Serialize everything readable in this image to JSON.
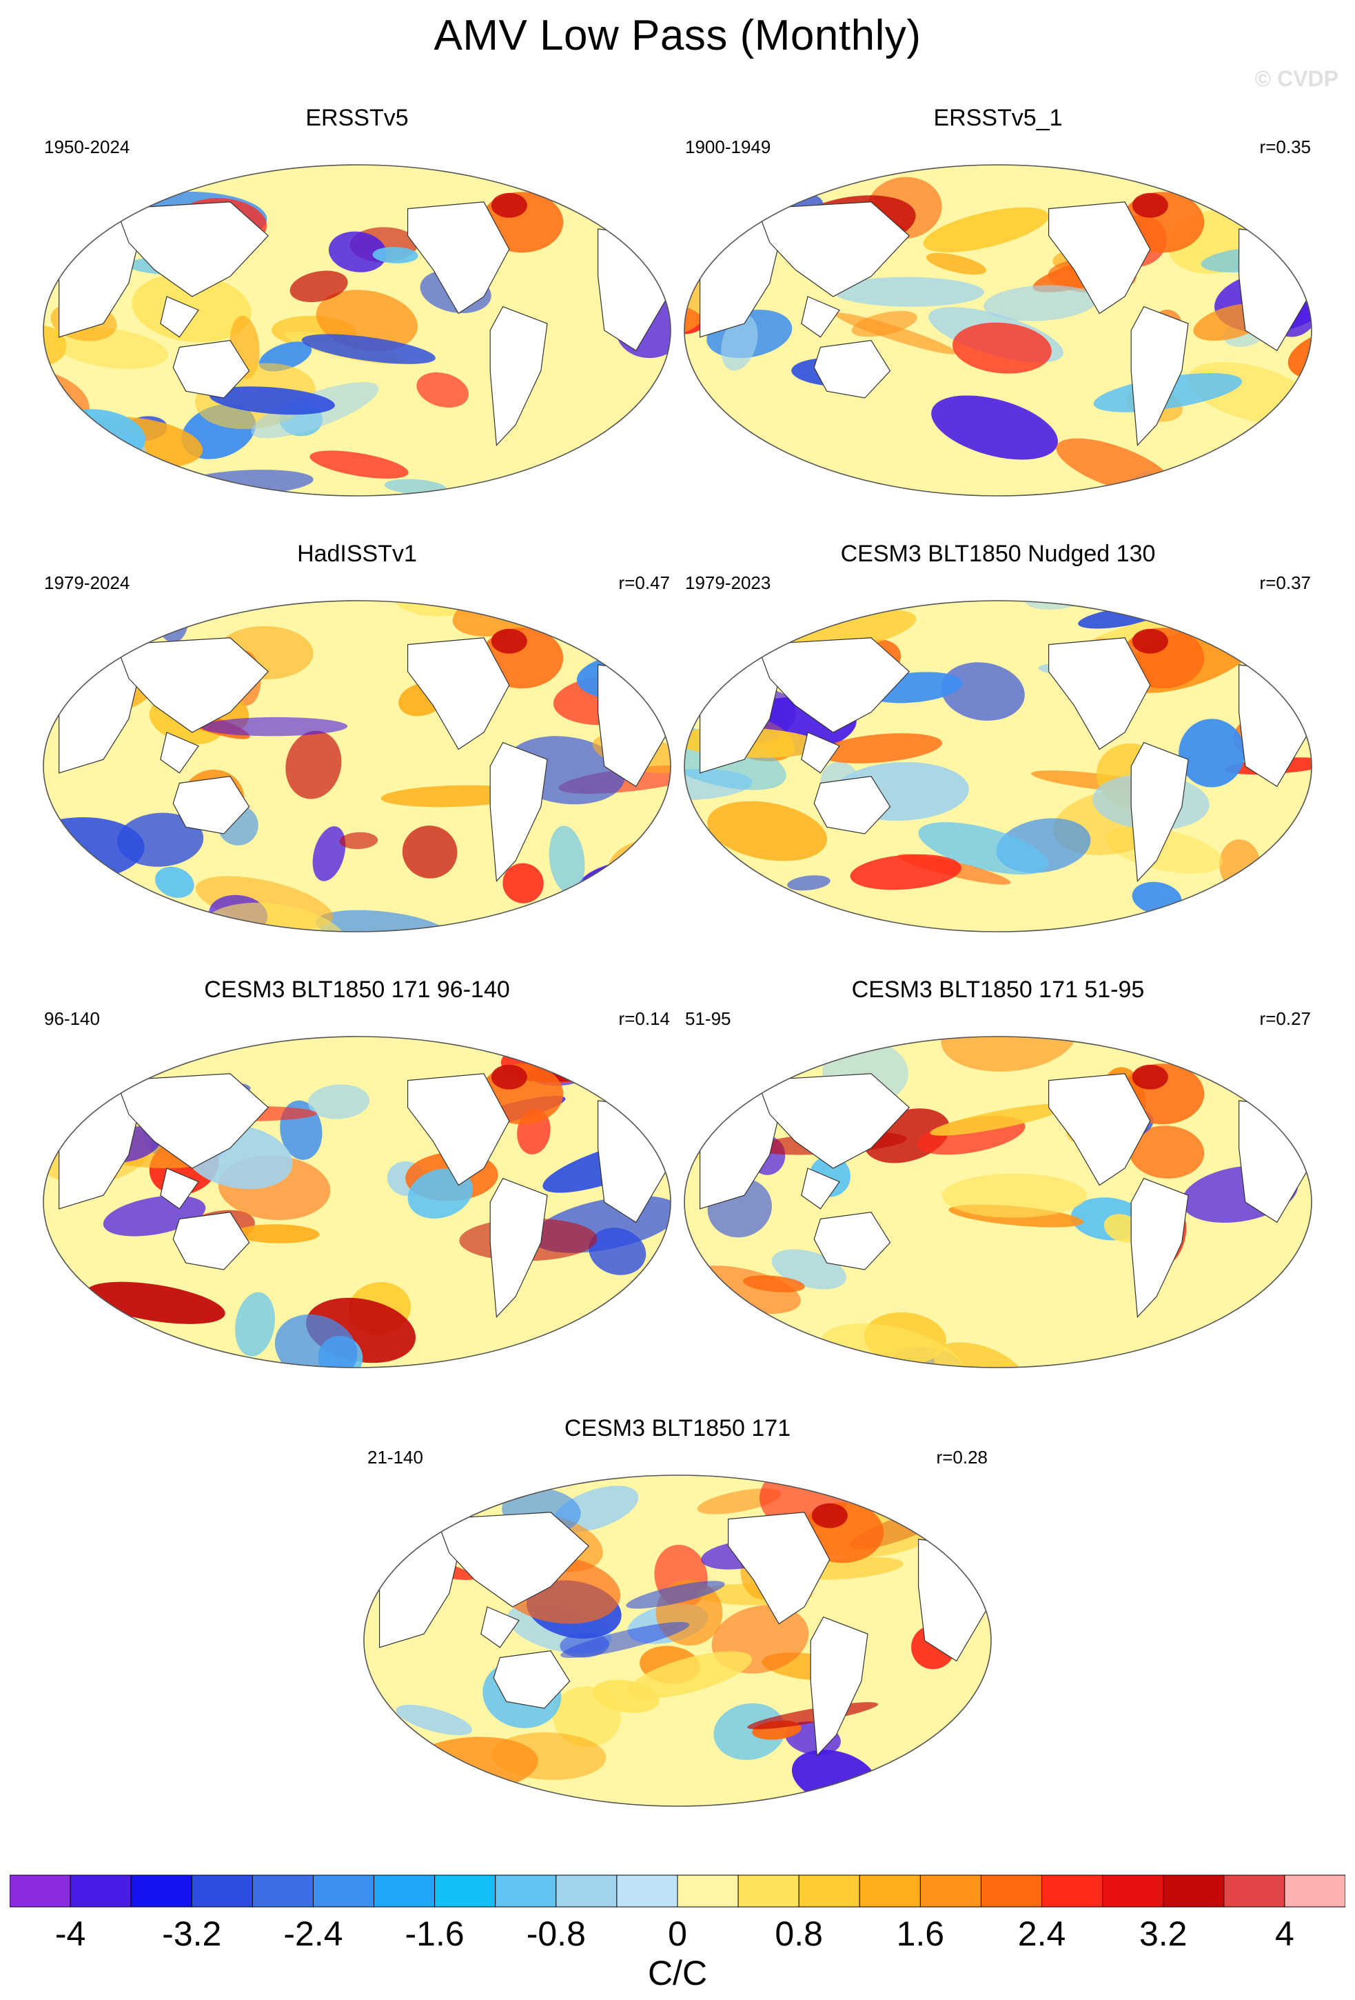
{
  "figure": {
    "title": "AMV Low Pass (Monthly)",
    "watermark": "© CVDP",
    "units": "C/C"
  },
  "colorbar": {
    "colors": [
      "#8a2be2",
      "#4b1ce6",
      "#1414f0",
      "#2e4ee0",
      "#3c6fe6",
      "#3e8ef0",
      "#20a8f8",
      "#11c0f8",
      "#60c3f2",
      "#9fd3ee",
      "#bfe3f6",
      "#fff7a6",
      "#ffe35a",
      "#ffcb32",
      "#ffae1a",
      "#ff931a",
      "#ff6a10",
      "#ff2a1a",
      "#e81010",
      "#c40808",
      "#e24545",
      "#ffb0b0"
    ],
    "tick_labels": [
      "-4",
      "-3.2",
      "-2.4",
      "-1.6",
      "-0.8",
      "0",
      "0.8",
      "1.6",
      "2.4",
      "3.2",
      "4"
    ]
  },
  "panels": [
    {
      "title": "ERSSTv5",
      "period": "1950-2024",
      "corr": ""
    },
    {
      "title": "ERSSTv5_1",
      "period": "1900-1949",
      "corr": "r=0.35"
    },
    {
      "title": "HadISSTv1",
      "period": "1979-2024",
      "corr": "r=0.47"
    },
    {
      "title": "CESM3 BLT1850 Nudged 130",
      "period": "1979-2023",
      "corr": "r=0.37"
    },
    {
      "title": "CESM3 BLT1850 171 96-140",
      "period": "96-140",
      "corr": "r=0.14"
    },
    {
      "title": "CESM3 BLT1850 171 51-95",
      "period": "51-95",
      "corr": "r=0.27"
    },
    {
      "title": "CESM3 BLT1850 171",
      "period": "21-140",
      "corr": "r=0.28"
    }
  ]
}
